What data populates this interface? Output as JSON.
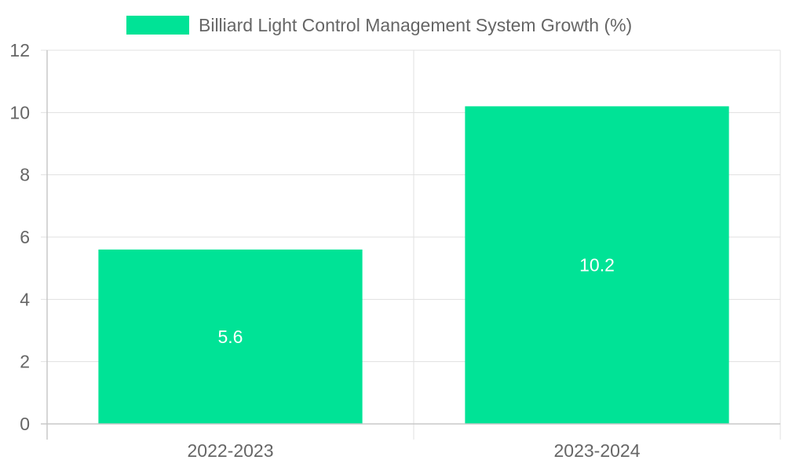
{
  "chart_data": {
    "type": "bar",
    "categories": [
      "2022-2023",
      "2023-2024"
    ],
    "series": [
      {
        "name": "Billiard Light Control Management System Growth (%)",
        "values": [
          5.6,
          10.2
        ],
        "color": "#00e396"
      }
    ],
    "data_labels": [
      "5.6",
      "10.2"
    ],
    "ylim": [
      0,
      12
    ],
    "y_ticks": [
      0,
      2,
      4,
      6,
      8,
      10,
      12
    ],
    "grid": true,
    "legend": "top-center",
    "colors": {
      "grid": "#e0e0e0",
      "axis": "#c8c8c8",
      "text": "#666666",
      "label": "#ffffff"
    }
  }
}
